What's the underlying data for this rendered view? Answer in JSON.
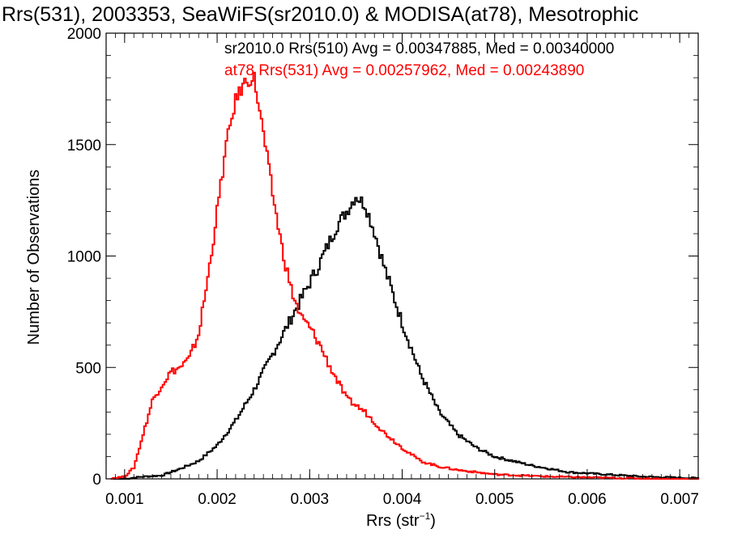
{
  "chart_data": {
    "type": "line",
    "title": "Rrs(531), 2003353, SeaWiFS(sr2010.0) & MODISA(at78), Mesotrophic",
    "xlabel_base": "Rrs (str",
    "xlabel_sup": "−1",
    "xlabel_end": ")",
    "ylabel": "Number of Observations",
    "xlim": [
      0.0008,
      0.0072
    ],
    "ylim": [
      0,
      2000
    ],
    "xticks": [
      0.001,
      0.002,
      0.003,
      0.004,
      0.005,
      0.006,
      0.007
    ],
    "xtick_labels": [
      "0.001",
      "0.002",
      "0.003",
      "0.004",
      "0.005",
      "0.006",
      "0.007"
    ],
    "yticks": [
      0,
      500,
      1000,
      1500,
      2000
    ],
    "ytick_labels": [
      "0",
      "500",
      "1000",
      "1500",
      "2000"
    ],
    "step": "histogram",
    "series": [
      {
        "name": "sr2010.0 Rrs(510) Avg = 0.00347885, Med = 0.00340000",
        "color": "#000000",
        "x": [
          0.0012,
          0.0014,
          0.0016,
          0.0018,
          0.002,
          0.0022,
          0.0024,
          0.0026,
          0.0028,
          0.003,
          0.0031,
          0.0032,
          0.0033,
          0.0034,
          0.0035,
          0.0036,
          0.0037,
          0.0038,
          0.0039,
          0.004,
          0.0042,
          0.0044,
          0.0046,
          0.0048,
          0.005,
          0.0054,
          0.0058,
          0.0062,
          0.0066,
          0.007
        ],
        "y": [
          10,
          15,
          45,
          80,
          150,
          260,
          400,
          560,
          720,
          880,
          960,
          1050,
          1140,
          1200,
          1270,
          1230,
          1110,
          960,
          830,
          700,
          470,
          300,
          200,
          140,
          100,
          60,
          30,
          20,
          10,
          5
        ]
      },
      {
        "name": "at78 Rrs(531) Avg = 0.00257962, Med = 0.00243890",
        "color": "#ff0000",
        "x": [
          0.001,
          0.0011,
          0.0012,
          0.0013,
          0.0014,
          0.0015,
          0.0016,
          0.0017,
          0.0018,
          0.0019,
          0.002,
          0.0021,
          0.0022,
          0.0023,
          0.0024,
          0.0025,
          0.0026,
          0.0027,
          0.0028,
          0.0029,
          0.003,
          0.0031,
          0.0032,
          0.0034,
          0.0036,
          0.0038,
          0.004,
          0.0042,
          0.0044,
          0.0046,
          0.005,
          0.0056,
          0.0062
        ],
        "y": [
          10,
          50,
          200,
          350,
          420,
          480,
          500,
          540,
          650,
          900,
          1200,
          1500,
          1700,
          1780,
          1800,
          1550,
          1280,
          1040,
          850,
          730,
          680,
          610,
          520,
          360,
          300,
          210,
          140,
          80,
          55,
          40,
          20,
          10,
          5
        ]
      }
    ]
  }
}
